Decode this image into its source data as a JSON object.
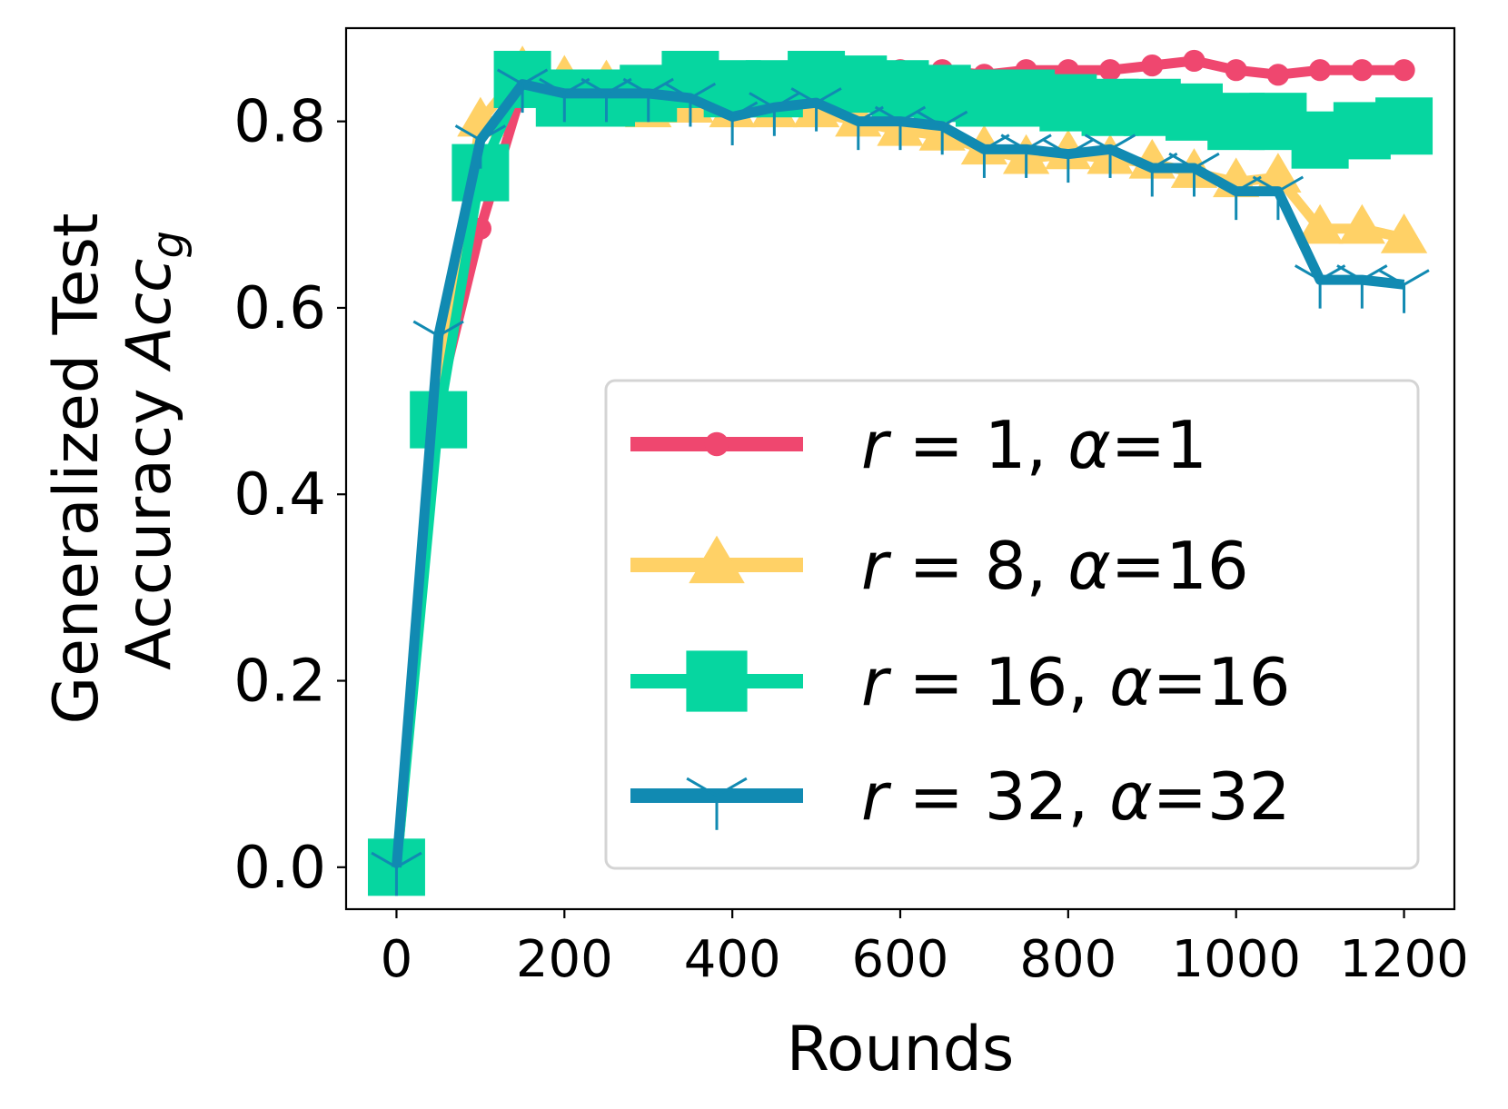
{
  "chart_data": {
    "type": "line",
    "title": "",
    "xlabel": "Rounds",
    "ylabel_line1": "Generalized Test",
    "ylabel_line2_text": "Accuracy ",
    "ylabel_line2_math": "Acc",
    "ylabel_line2_sub": "g",
    "xlim": [
      -60,
      1260
    ],
    "ylim": [
      -0.045,
      0.9
    ],
    "xticks": [
      0,
      200,
      400,
      600,
      800,
      1000,
      1200
    ],
    "xtick_labels": [
      "0",
      "200",
      "400",
      "600",
      "800",
      "1000",
      "1200"
    ],
    "yticks": [
      0.0,
      0.2,
      0.4,
      0.6,
      0.8
    ],
    "ytick_labels": [
      "0.0",
      "0.2",
      "0.4",
      "0.6",
      "0.8"
    ],
    "grid": false,
    "legend_position": "lower-right",
    "x": [
      0,
      50,
      100,
      150,
      200,
      250,
      300,
      350,
      400,
      450,
      500,
      550,
      600,
      650,
      700,
      750,
      800,
      850,
      900,
      950,
      1000,
      1050,
      1100,
      1150,
      1200
    ],
    "series": [
      {
        "name": "r = 1, α=1",
        "label_var": "r",
        "label_mid": " = 1, ",
        "label_greek": "α",
        "label_tail": "=1",
        "color": "#ef476f",
        "marker": "circle",
        "values": [
          0.0,
          0.5,
          0.685,
          0.835,
          0.83,
          0.835,
          0.835,
          0.835,
          0.835,
          0.845,
          0.85,
          0.85,
          0.855,
          0.855,
          0.85,
          0.855,
          0.855,
          0.855,
          0.86,
          0.865,
          0.855,
          0.85,
          0.855,
          0.855,
          0.855
        ]
      },
      {
        "name": "r = 8, α=16",
        "label_var": "r",
        "label_mid": " = 8, ",
        "label_greek": "α",
        "label_tail": "=16",
        "color": "#ffd166",
        "marker": "triangle",
        "values": [
          0.0,
          0.5,
          0.8,
          0.855,
          0.845,
          0.84,
          0.81,
          0.815,
          0.81,
          0.81,
          0.81,
          0.8,
          0.79,
          0.785,
          0.77,
          0.76,
          0.765,
          0.76,
          0.755,
          0.745,
          0.735,
          0.74,
          0.685,
          0.685,
          0.675
        ]
      },
      {
        "name": "r = 16, α=16",
        "label_var": "r",
        "label_mid": " = 16, ",
        "label_greek": "α",
        "label_tail": "=16",
        "color": "#06d6a0",
        "marker": "square",
        "values": [
          0.0,
          0.48,
          0.745,
          0.845,
          0.825,
          0.825,
          0.83,
          0.845,
          0.835,
          0.835,
          0.845,
          0.84,
          0.835,
          0.83,
          0.825,
          0.825,
          0.82,
          0.815,
          0.815,
          0.81,
          0.8,
          0.8,
          0.78,
          0.79,
          0.795
        ]
      },
      {
        "name": "r = 32, α=32",
        "label_var": "r",
        "label_mid": " = 32, ",
        "label_greek": "α",
        "label_tail": "=32",
        "color": "#118ab2",
        "marker": "tri_down",
        "values": [
          0.0,
          0.57,
          0.78,
          0.84,
          0.83,
          0.83,
          0.83,
          0.825,
          0.805,
          0.815,
          0.82,
          0.8,
          0.8,
          0.795,
          0.77,
          0.77,
          0.765,
          0.77,
          0.75,
          0.75,
          0.725,
          0.725,
          0.63,
          0.63,
          0.625
        ]
      }
    ]
  }
}
